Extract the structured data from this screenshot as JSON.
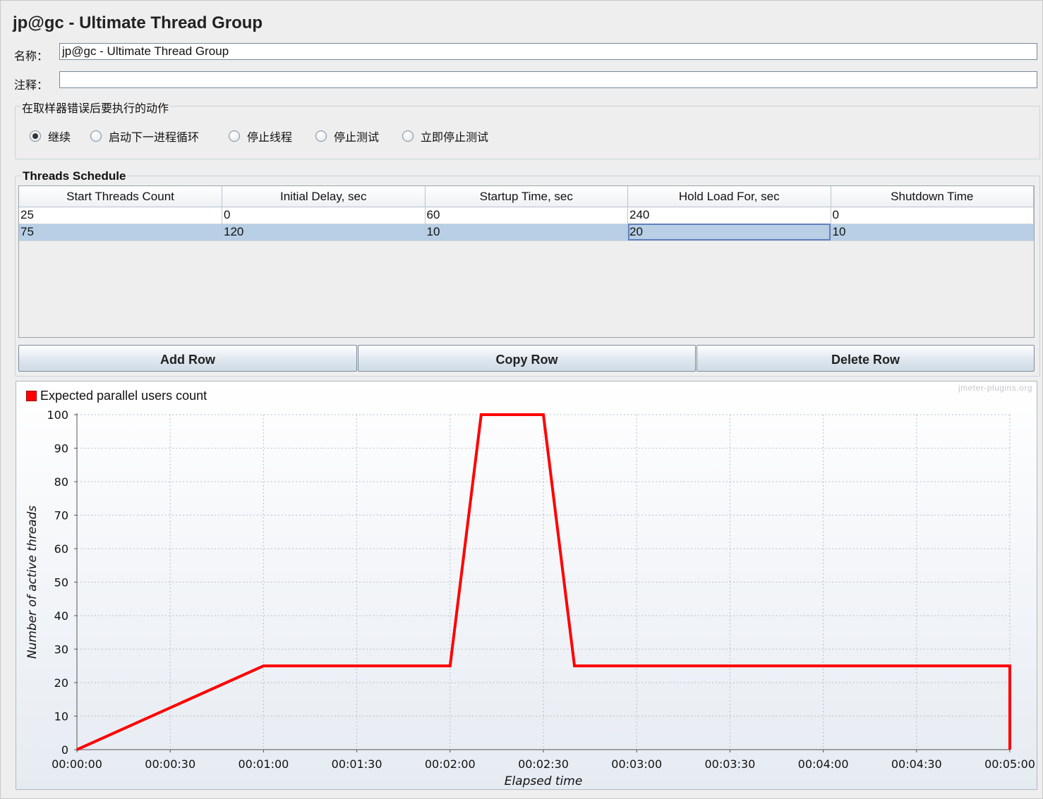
{
  "title": "jp@gc - Ultimate Thread Group",
  "name_label": "名称：",
  "name_value": "jp@gc - Ultimate Thread Group",
  "comment_label": "注释：",
  "comment_value": "",
  "error_action": {
    "legend": "在取样器错误后要执行的动作",
    "options": [
      "继续",
      "启动下一进程循环",
      "停止线程",
      "停止测试",
      "立即停止测试"
    ],
    "selected": "继续"
  },
  "schedule": {
    "legend": "Threads Schedule",
    "columns": [
      "Start Threads Count",
      "Initial Delay, sec",
      "Startup Time, sec",
      "Hold Load For, sec",
      "Shutdown Time"
    ],
    "rows": [
      [
        "25",
        "0",
        "60",
        "240",
        "0"
      ],
      [
        "75",
        "120",
        "10",
        "20",
        "10"
      ]
    ],
    "selected_row": 1,
    "focused_cell": "Hold Load For, sec"
  },
  "buttons": {
    "add": "Add Row",
    "copy": "Copy Row",
    "delete": "Delete Row"
  },
  "watermark": "jmeter-plugins.org",
  "chart_data": {
    "type": "line",
    "legend": "Expected parallel users count",
    "series_color": "#ff0000",
    "xlabel": "Elapsed time",
    "ylabel": "Number of active threads",
    "xlim": [
      0,
      300
    ],
    "ylim": [
      0,
      100
    ],
    "x_ticks": [
      0,
      30,
      60,
      90,
      120,
      150,
      180,
      210,
      240,
      270,
      300
    ],
    "x_tick_labels": [
      "00:00:00",
      "00:00:30",
      "00:01:00",
      "00:01:30",
      "00:02:00",
      "00:02:30",
      "00:03:00",
      "00:03:30",
      "00:04:00",
      "00:04:30",
      "00:05:00"
    ],
    "y_ticks": [
      0,
      10,
      20,
      30,
      40,
      50,
      60,
      70,
      80,
      90,
      100
    ],
    "grid": true,
    "series": [
      {
        "name": "Expected parallel users count",
        "points": [
          [
            0,
            0
          ],
          [
            60,
            25
          ],
          [
            120,
            25
          ],
          [
            130,
            100
          ],
          [
            150,
            100
          ],
          [
            160,
            25
          ],
          [
            300,
            25
          ],
          [
            300,
            0
          ]
        ]
      }
    ]
  }
}
